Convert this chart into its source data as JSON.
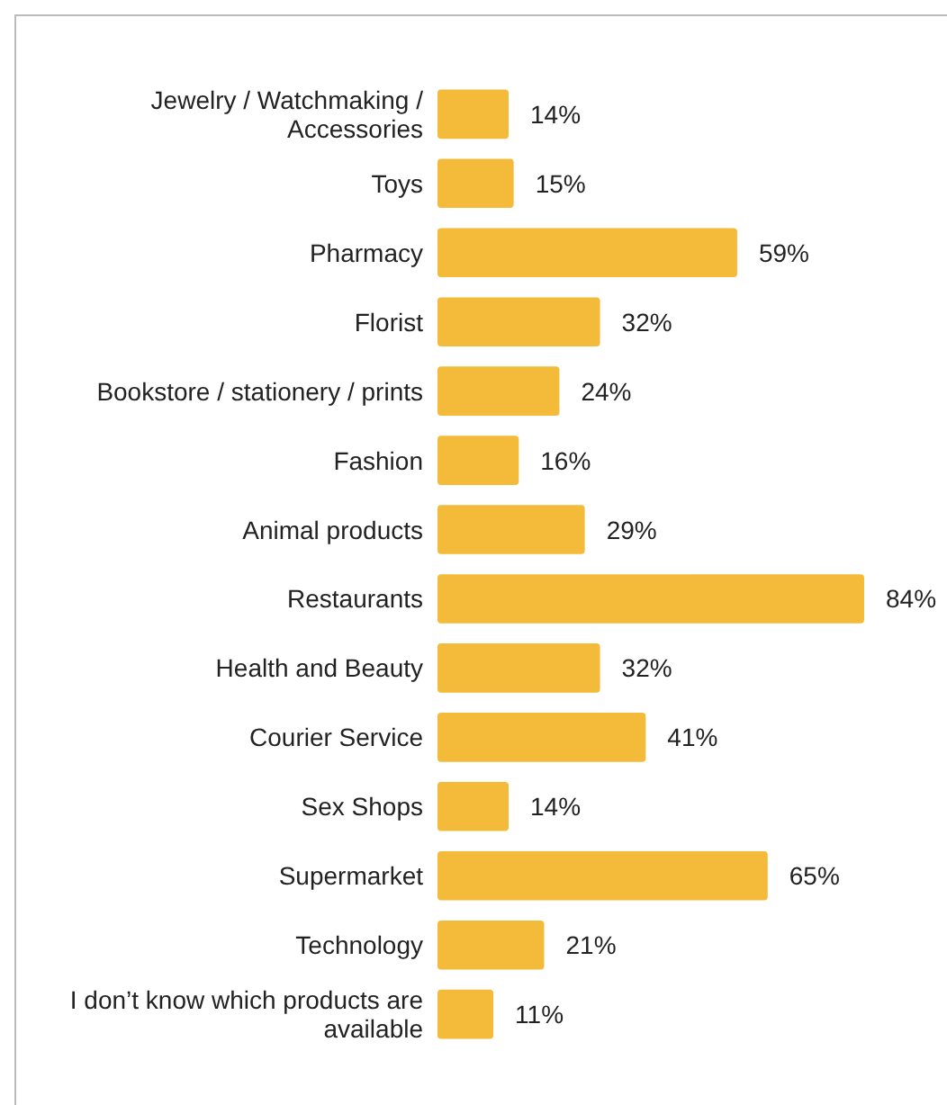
{
  "chart_data": {
    "type": "bar",
    "orientation": "horizontal",
    "categories": [
      "Jewelry / Watchmaking / Accessories",
      "Toys",
      "Pharmacy",
      "Florist",
      "Bookstore / stationery / prints",
      "Fashion",
      "Animal products",
      "Restaurants",
      "Health and Beauty",
      "Courier Service",
      "Sex Shops",
      "Supermarket",
      "Technology",
      "I don’t know which products are available"
    ],
    "values": [
      14,
      15,
      59,
      32,
      24,
      16,
      29,
      84,
      32,
      41,
      14,
      65,
      21,
      11
    ],
    "value_labels": [
      "14%",
      "15%",
      "59%",
      "32%",
      "24%",
      "16%",
      "29%",
      "84%",
      "32%",
      "41%",
      "14%",
      "65%",
      "21%",
      "11%"
    ],
    "color": "#f4bb3a"
  }
}
